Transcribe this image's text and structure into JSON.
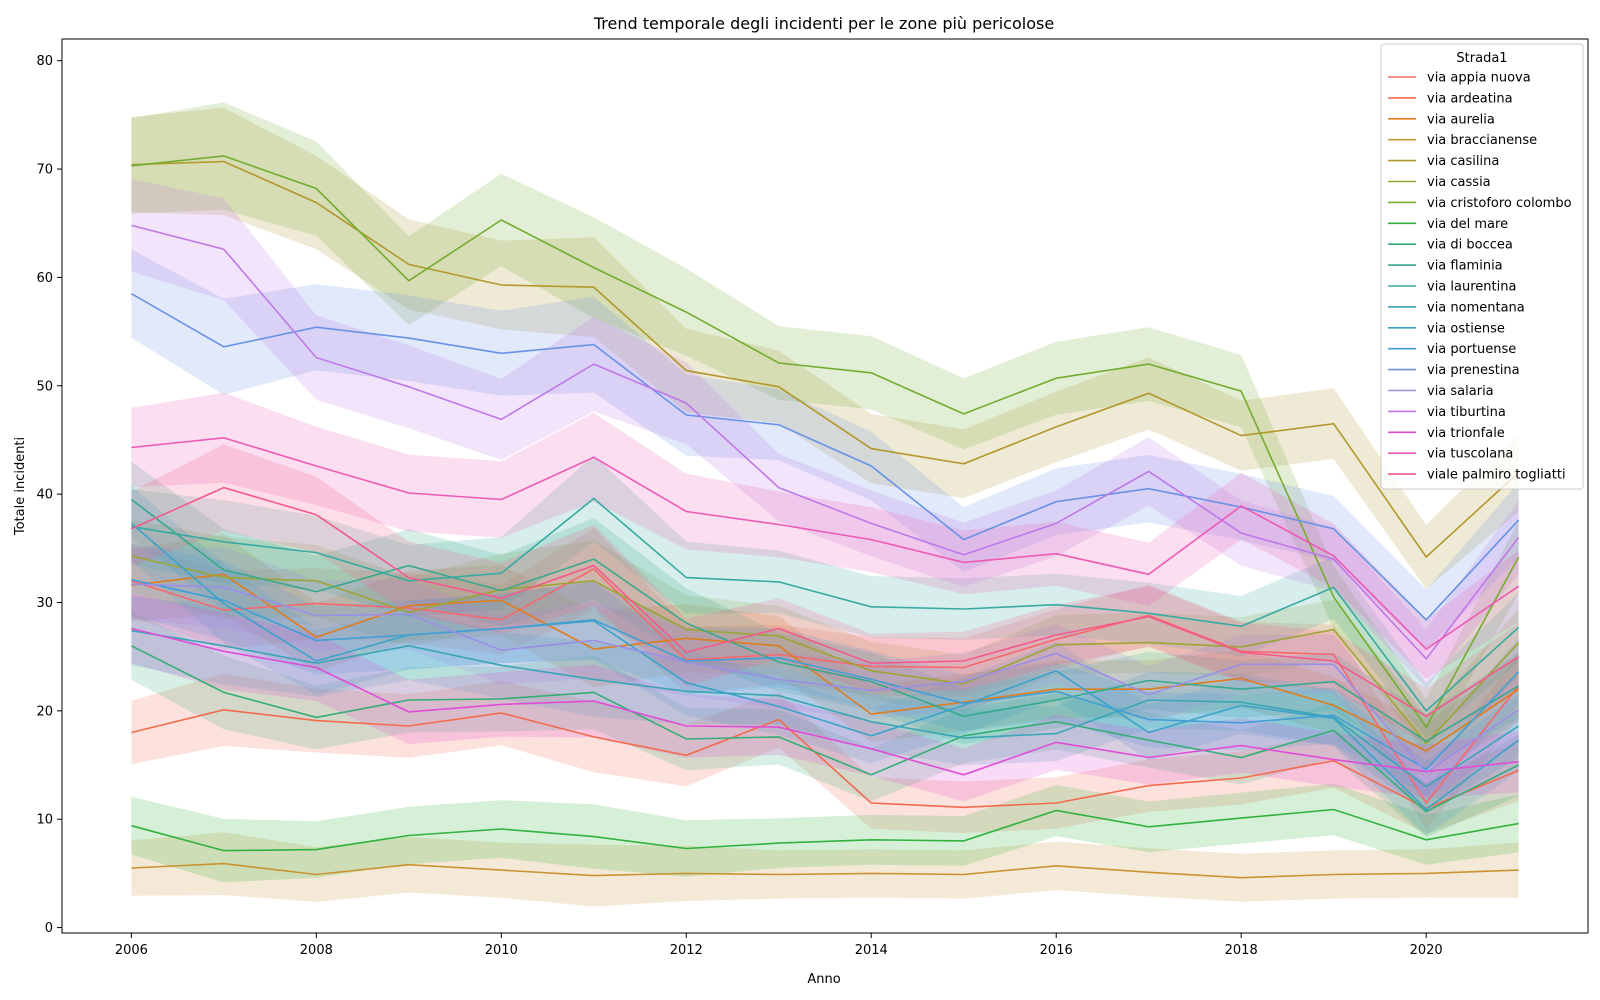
{
  "chart_data": {
    "type": "line",
    "title": "Trend temporale degli incidenti per le zone più pericolose",
    "xlabel": "Anno",
    "ylabel": "Totale incidenti",
    "xlim": [
      2005.25,
      2021.75
    ],
    "ylim": [
      -0.5,
      82
    ],
    "x_ticks": [
      2006,
      2008,
      2010,
      2012,
      2014,
      2016,
      2018,
      2020
    ],
    "y_ticks": [
      0,
      10,
      20,
      30,
      40,
      50,
      60,
      70,
      80
    ],
    "grid": false,
    "legend_title": "Strada1",
    "legend_position": "top-right",
    "x": [
      2006,
      2007,
      2008,
      2009,
      2010,
      2011,
      2012,
      2013,
      2014,
      2015,
      2016,
      2017,
      2018,
      2019,
      2020,
      2021
    ],
    "band_half_width": [
      4,
      4.5,
      4,
      4,
      4,
      4.5,
      4,
      3.5,
      3.5,
      3.5,
      3.5,
      3.5,
      3.5,
      3.5,
      3.5,
      4
    ],
    "series": [
      {
        "name": "via appia nuova",
        "color": "#f7686d",
        "values": [
          32.0,
          29.3,
          29.9,
          29.5,
          28.4,
          33.1,
          24.7,
          25.2,
          24.1,
          24.0,
          26.6,
          28.8,
          25.5,
          25.2,
          11.5,
          22.3
        ]
      },
      {
        "name": "via ardeatina",
        "color": "#f36b4e",
        "values": [
          18.0,
          20.1,
          19.1,
          18.6,
          19.8,
          17.6,
          15.9,
          19.2,
          11.5,
          11.1,
          11.5,
          13.1,
          13.8,
          15.4,
          11.0,
          14.5
        ]
      },
      {
        "name": "via aurelia",
        "color": "#de7c1e",
        "values": [
          31.6,
          32.6,
          26.8,
          29.7,
          30.2,
          25.7,
          26.7,
          26.0,
          19.7,
          20.8,
          22.0,
          22.0,
          23.0,
          20.5,
          16.3,
          22.0
        ]
      },
      {
        "name": "via braccianense",
        "color": "#c99331",
        "values": [
          5.5,
          5.9,
          4.9,
          5.8,
          5.3,
          4.8,
          5.0,
          4.9,
          5.0,
          4.9,
          5.7,
          5.1,
          4.6,
          4.9,
          5.0,
          5.3
        ]
      },
      {
        "name": "via casilina",
        "color": "#b1982d",
        "values": [
          70.4,
          70.7,
          66.9,
          61.2,
          59.3,
          59.1,
          51.4,
          49.9,
          44.2,
          42.8,
          46.2,
          49.3,
          45.4,
          46.5,
          34.2,
          42.0
        ]
      },
      {
        "name": "via cassia",
        "color": "#9ca534",
        "values": [
          34.3,
          32.3,
          32.0,
          29.1,
          31.2,
          32.0,
          27.5,
          26.9,
          23.7,
          22.5,
          26.1,
          26.3,
          25.9,
          27.5,
          17.0,
          26.3
        ]
      },
      {
        "name": "via cristoforo colombo",
        "color": "#74ac30",
        "values": [
          70.3,
          71.2,
          68.2,
          59.7,
          65.3,
          60.9,
          56.8,
          52.1,
          51.2,
          47.4,
          50.7,
          52.0,
          49.5,
          30.5,
          18.5,
          34.2
        ]
      },
      {
        "name": "via del mare",
        "color": "#31b23e",
        "values": [
          9.4,
          7.1,
          7.2,
          8.5,
          9.1,
          8.4,
          7.3,
          7.8,
          8.1,
          8.0,
          10.8,
          9.3,
          10.1,
          10.9,
          8.1,
          9.6
        ]
      },
      {
        "name": "via di boccea",
        "color": "#35ad78",
        "values": [
          26.0,
          21.7,
          19.4,
          21.0,
          21.1,
          21.7,
          17.4,
          17.6,
          14.1,
          17.7,
          19.0,
          17.3,
          15.7,
          18.2,
          10.7,
          15.0
        ]
      },
      {
        "name": "via flaminia",
        "color": "#36a98d",
        "values": [
          39.5,
          33.0,
          31.0,
          33.4,
          31.1,
          34.0,
          28.1,
          24.5,
          22.7,
          19.5,
          21.0,
          22.8,
          22.0,
          22.7,
          17.2,
          22.3
        ]
      },
      {
        "name": "via laurentina",
        "color": "#37aaa1",
        "values": [
          37.0,
          35.6,
          34.6,
          32.0,
          32.7,
          39.6,
          32.3,
          31.9,
          29.6,
          29.4,
          29.8,
          29.0,
          27.8,
          31.4,
          20.0,
          27.7
        ]
      },
      {
        "name": "via nomentana",
        "color": "#3aa5b5",
        "values": [
          27.4,
          26.0,
          24.4,
          26.0,
          24.2,
          22.9,
          21.8,
          21.4,
          19.0,
          17.5,
          17.9,
          21.0,
          20.8,
          19.4,
          13.0,
          18.6
        ]
      },
      {
        "name": "via ostiense",
        "color": "#3ba3c8",
        "values": [
          37.3,
          29.9,
          24.6,
          27.0,
          27.6,
          28.3,
          22.6,
          20.4,
          17.7,
          20.5,
          23.7,
          18.0,
          20.5,
          19.3,
          10.9,
          17.3
        ]
      },
      {
        "name": "via portuense",
        "color": "#419fd6",
        "values": [
          32.1,
          30.2,
          26.5,
          27.0,
          27.6,
          28.4,
          24.6,
          24.9,
          22.9,
          20.7,
          21.8,
          19.2,
          18.9,
          19.6,
          14.6,
          23.6
        ]
      },
      {
        "name": "via prenestina",
        "color": "#6892e6",
        "values": [
          58.5,
          53.6,
          55.4,
          54.4,
          53.0,
          53.8,
          47.3,
          46.4,
          42.6,
          35.8,
          39.3,
          40.5,
          38.8,
          36.8,
          28.4,
          37.6
        ]
      },
      {
        "name": "via salaria",
        "color": "#9a8ee6",
        "values": [
          31.7,
          31.4,
          28.8,
          28.9,
          25.6,
          26.5,
          24.5,
          22.9,
          21.9,
          22.7,
          25.3,
          21.5,
          24.3,
          24.3,
          14.3,
          20.1
        ]
      },
      {
        "name": "via tiburtina",
        "color": "#be79e8",
        "values": [
          64.8,
          62.6,
          52.6,
          49.9,
          46.9,
          52.0,
          48.4,
          40.6,
          37.3,
          34.4,
          37.3,
          42.1,
          36.4,
          34.0,
          24.8,
          36.0
        ]
      },
      {
        "name": "via trionfale",
        "color": "#e04cd6",
        "values": [
          27.6,
          25.5,
          24.0,
          19.9,
          20.6,
          20.9,
          18.6,
          18.5,
          16.5,
          14.1,
          17.1,
          15.7,
          16.8,
          15.5,
          14.4,
          15.3
        ]
      },
      {
        "name": "via tuscolana",
        "color": "#ed5bb5",
        "values": [
          44.3,
          45.2,
          42.6,
          40.1,
          39.5,
          43.4,
          38.4,
          37.2,
          35.8,
          33.7,
          34.5,
          32.6,
          38.9,
          34.3,
          25.7,
          31.5
        ]
      },
      {
        "name": "viale palmiro togliatti",
        "color": "#f4598c",
        "values": [
          36.8,
          40.6,
          38.1,
          32.3,
          30.4,
          33.4,
          25.4,
          27.6,
          24.4,
          24.6,
          27.0,
          28.7,
          25.4,
          24.6,
          19.5,
          25.0
        ]
      }
    ]
  }
}
